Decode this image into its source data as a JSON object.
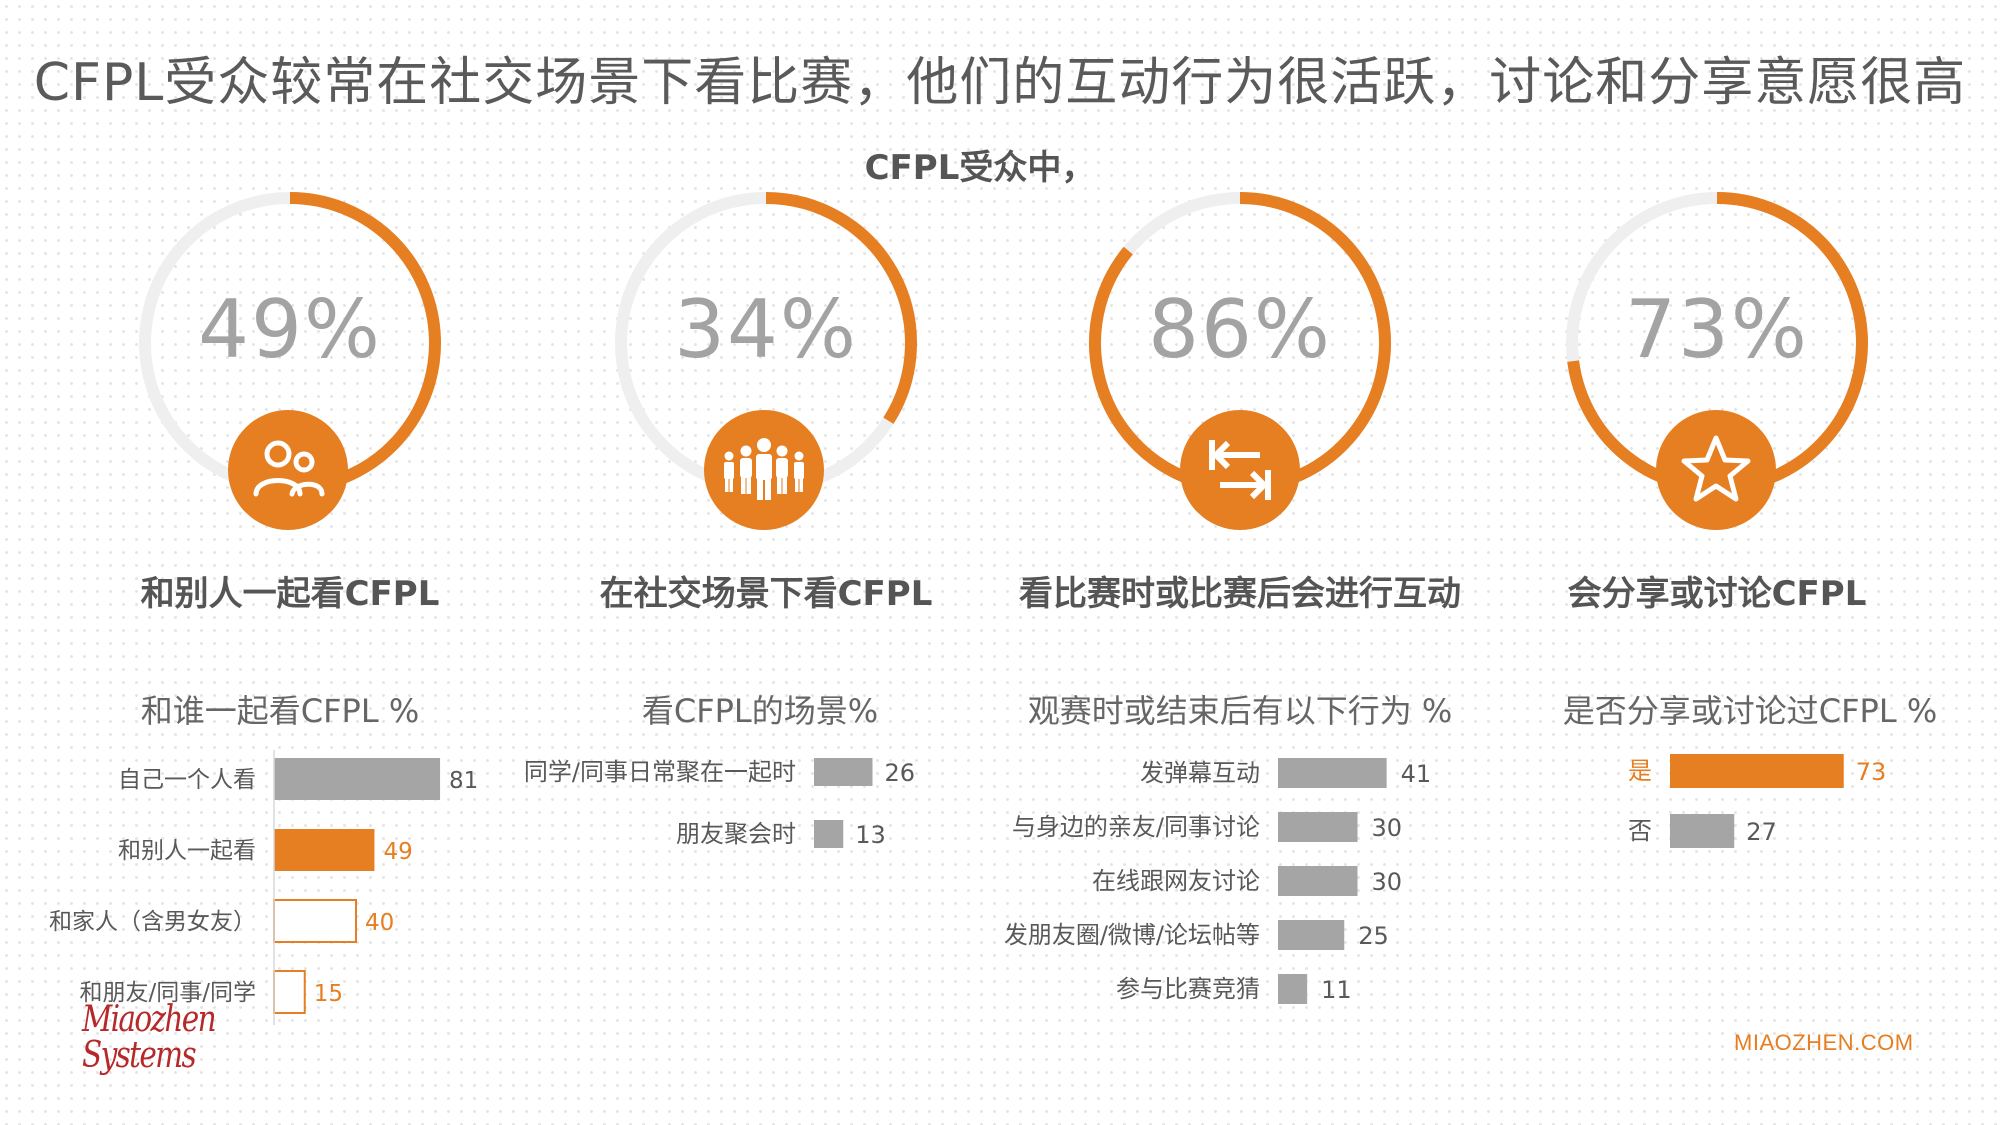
{
  "title": "CFPL受众较常在社交场景下看比赛，他们的互动行为很活跃，讨论和分享意愿很高",
  "subtitle": "CFPL受众中，",
  "colors": {
    "accent": "#e67e22",
    "gray_bar": "#a5a5a5",
    "ring_track": "#efefef",
    "text": "#555555"
  },
  "stats": [
    {
      "percent": 49,
      "label": "49%",
      "caption": "和别人一起看CFPL",
      "icon": "people-icon"
    },
    {
      "percent": 34,
      "label": "34%",
      "caption": "在社交场景下看CFPL",
      "icon": "group-icon"
    },
    {
      "percent": 86,
      "label": "86%",
      "caption": "看比赛时或比赛后会进行互动",
      "icon": "swap-arrows-icon"
    },
    {
      "percent": 73,
      "label": "73%",
      "caption": "会分享或讨论CFPL",
      "icon": "star-icon"
    }
  ],
  "chart_data": [
    {
      "type": "bar",
      "orientation": "horizontal",
      "title": "和谁一起看CFPL %",
      "categories": [
        "自己一个人看",
        "和别人一起看",
        "和家人（含男女友）",
        "和朋友/同事/同学"
      ],
      "values": [
        81,
        49,
        40,
        15
      ],
      "styles": [
        "gray",
        "orange",
        "outline",
        "outline"
      ]
    },
    {
      "type": "bar",
      "orientation": "horizontal",
      "title": "看CFPL的场景%",
      "categories": [
        "同学/同事日常聚在一起时",
        "朋友聚会时"
      ],
      "values": [
        26,
        13
      ],
      "styles": [
        "gray",
        "gray"
      ]
    },
    {
      "type": "bar",
      "orientation": "horizontal",
      "title": "观赛时或结束后有以下行为 %",
      "categories": [
        "发弹幕互动",
        "与身边的亲友/同事讨论",
        "在线跟网友讨论",
        "发朋友圈/微博/论坛帖等",
        "参与比赛竞猜"
      ],
      "values": [
        41,
        30,
        30,
        25,
        11
      ],
      "styles": [
        "gray",
        "gray",
        "gray",
        "gray",
        "gray"
      ]
    },
    {
      "type": "bar",
      "orientation": "horizontal",
      "title": "是否分享或讨论过CFPL %",
      "categories": [
        "是",
        "否"
      ],
      "values": [
        73,
        27
      ],
      "styles": [
        "orange",
        "gray"
      ]
    }
  ],
  "footer": {
    "logo_line1": "Miaozhen",
    "logo_line2": "Systems",
    "site": "MIAOZHEN.COM"
  }
}
